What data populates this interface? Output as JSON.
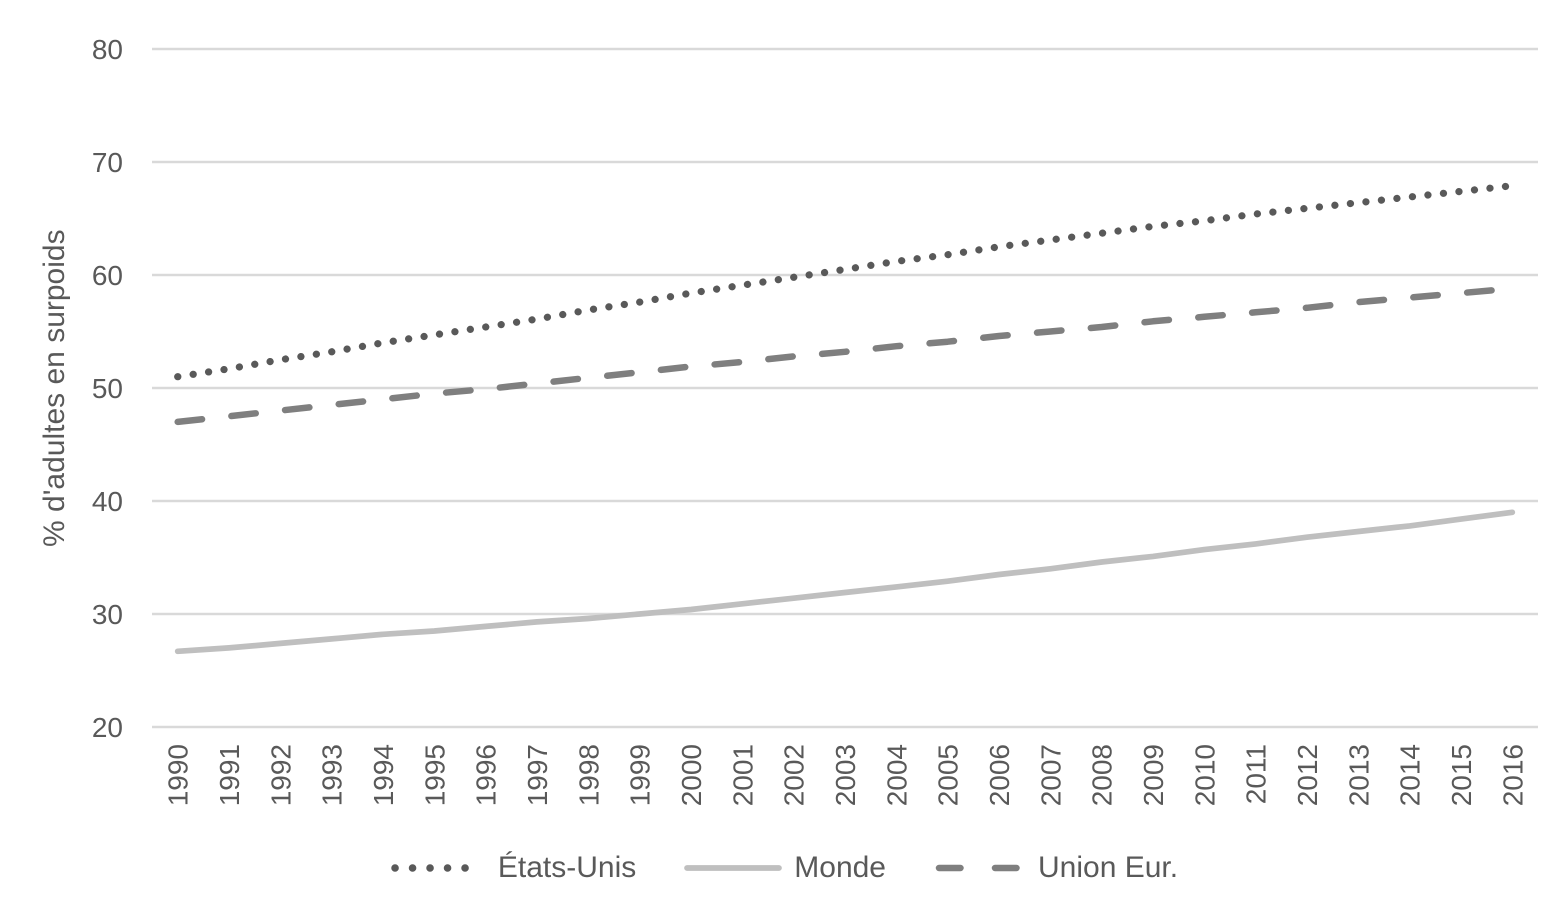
{
  "chart_data": {
    "type": "line",
    "title": "",
    "xlabel": "",
    "ylabel": "% d'adultes en surpoids",
    "ylim": [
      20,
      80
    ],
    "yticks": [
      20,
      30,
      40,
      50,
      60,
      70,
      80
    ],
    "grid": "horizontal-only",
    "legend_position": "bottom-center",
    "x": [
      1990,
      1991,
      1992,
      1993,
      1994,
      1995,
      1996,
      1997,
      1998,
      1999,
      2000,
      2001,
      2002,
      2003,
      2004,
      2005,
      2006,
      2007,
      2008,
      2009,
      2010,
      2011,
      2012,
      2013,
      2014,
      2015,
      2016
    ],
    "series": [
      {
        "name": "États-Unis",
        "line_style": "dotted",
        "color": "#595959",
        "values": [
          51.0,
          51.7,
          52.5,
          53.2,
          54.0,
          54.7,
          55.4,
          56.1,
          56.9,
          57.6,
          58.4,
          59.1,
          59.8,
          60.5,
          61.2,
          61.8,
          62.5,
          63.1,
          63.7,
          64.3,
          64.8,
          65.4,
          65.9,
          66.4,
          66.9,
          67.4,
          67.9
        ]
      },
      {
        "name": "Monde",
        "line_style": "solid",
        "color": "#bfbfbf",
        "values": [
          26.7,
          27.0,
          27.4,
          27.8,
          28.2,
          28.5,
          28.9,
          29.3,
          29.6,
          30.0,
          30.4,
          30.9,
          31.4,
          31.9,
          32.4,
          32.9,
          33.5,
          34.0,
          34.6,
          35.1,
          35.7,
          36.2,
          36.8,
          37.3,
          37.8,
          38.4,
          39.0
        ]
      },
      {
        "name": "Union Eur.",
        "line_style": "dashed",
        "color": "#7f7f7f",
        "values": [
          47.0,
          47.5,
          48.0,
          48.5,
          49.0,
          49.5,
          49.9,
          50.4,
          50.9,
          51.4,
          51.9,
          52.3,
          52.8,
          53.2,
          53.7,
          54.1,
          54.6,
          55.0,
          55.4,
          55.9,
          56.3,
          56.7,
          57.1,
          57.6,
          58.0,
          58.4,
          58.8
        ]
      }
    ],
    "colors": {
      "gridline": "#d9d9d9",
      "axis_text": "#595959",
      "background": "#ffffff"
    }
  }
}
